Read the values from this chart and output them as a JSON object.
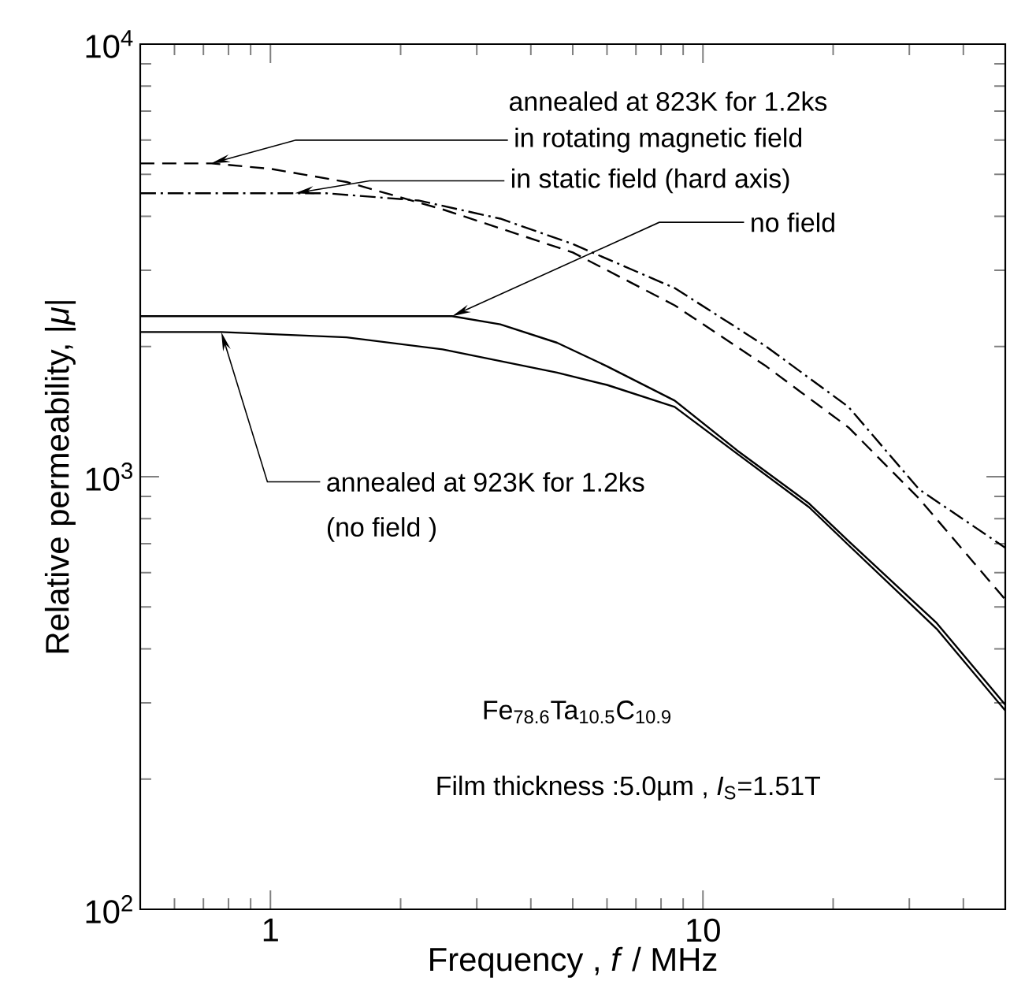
{
  "chart_data": {
    "type": "line",
    "xlabel": "Frequency , *f* / MHz",
    "ylabel": "Relative permeability, |*μ*|",
    "log": "xy",
    "grid": false,
    "marker": "none",
    "xlim": [
      0.5,
      50
    ],
    "ylim": [
      100,
      10000
    ],
    "xticks": [
      {
        "value": 0.6,
        "label": null
      },
      {
        "value": 0.7,
        "label": null
      },
      {
        "value": 0.8,
        "label": null
      },
      {
        "value": 0.9,
        "label": null
      },
      1,
      {
        "value": 2,
        "label": null
      },
      {
        "value": 3,
        "label": null
      },
      {
        "value": 4,
        "label": null
      },
      {
        "value": 5,
        "label": null
      },
      {
        "value": 6,
        "label": null
      },
      {
        "value": 7,
        "label": null
      },
      {
        "value": 8,
        "label": null
      },
      {
        "value": 9,
        "label": null
      },
      10,
      {
        "value": 20,
        "label": null
      },
      {
        "value": 30,
        "label": null
      },
      {
        "value": 40,
        "label": null
      }
    ],
    "yticks": [
      {
        "value": 100,
        "label": "10$^{2}$"
      },
      {
        "value": 200,
        "label": null
      },
      {
        "value": 300,
        "label": null
      },
      {
        "value": 400,
        "label": null
      },
      {
        "value": 500,
        "label": null
      },
      {
        "value": 600,
        "label": null
      },
      {
        "value": 700,
        "label": null
      },
      {
        "value": 800,
        "label": null
      },
      {
        "value": 900,
        "label": null
      },
      {
        "value": 1000,
        "label": "10$^{3}$"
      },
      {
        "value": 2000,
        "label": null
      },
      {
        "value": 3000,
        "label": null
      },
      {
        "value": 4000,
        "label": null
      },
      {
        "value": 5000,
        "label": null
      },
      {
        "value": 6000,
        "label": null
      },
      {
        "value": 7000,
        "label": null
      },
      {
        "value": 8000,
        "label": null
      },
      {
        "value": 9000,
        "label": null
      },
      {
        "value": 10000,
        "label": "10$^{4}$"
      }
    ],
    "series": [
      {
        "color": "#000000",
        "line_style": "dashed",
        "x": [
          0.5,
          0.73,
          1,
          1.5,
          2.5,
          3.4,
          5,
          8.6,
          14,
          21.7,
          31.6,
          50
        ],
        "values": [
          5300,
          5300,
          5150,
          4800,
          4150,
          3750,
          3300,
          2490,
          1800,
          1300,
          890,
          520
        ]
      },
      {
        "color": "#000000",
        "line_style": "dashdot",
        "x": [
          0.5,
          1.35,
          2.2,
          3.4,
          5,
          8.6,
          14,
          21.7,
          31.6,
          50
        ],
        "values": [
          4520,
          4520,
          4350,
          3950,
          3450,
          2730,
          2000,
          1450,
          935,
          685
        ]
      },
      {
        "color": "#000000",
        "line_style": "solid",
        "x": [
          0.5,
          2.63,
          3.4,
          4.6,
          6,
          8.6,
          12,
          17.6,
          21.7,
          34.7,
          50
        ],
        "values": [
          2350,
          2350,
          2250,
          2040,
          1800,
          1500,
          1150,
          867,
          710,
          459,
          297
        ]
      },
      {
        "color": "#000000",
        "line_style": "solid",
        "x": [
          0.5,
          0.77,
          1.5,
          2.5,
          4.6,
          6,
          8.6,
          12,
          17.6,
          21.7,
          34.7,
          50
        ],
        "values": [
          2160,
          2160,
          2100,
          1970,
          1740,
          1630,
          1450,
          1130,
          850,
          695,
          445,
          288
        ]
      }
    ],
    "annotations": [
      "annealed at 823K for 1.2ks",
      {
        "text": "in rotating magnetic field",
        "x": 0.73,
        "y": 5300
      },
      {
        "text": "in static field (hard axis)",
        "x": 1.14,
        "y": 4520
      },
      {
        "text": "no field",
        "x": 2.63,
        "y": 2350
      },
      {
        "text": "annealed at 923K for 1.2ks",
        "x": 0.77,
        "y": 2160
      },
      "(no field )",
      "Fe$_{78.6}$Ta$_{10.5}$C$_{10.9}$",
      "Film thickness :5.0µm ,  *I*$_{S}$=1.51T"
    ]
  }
}
